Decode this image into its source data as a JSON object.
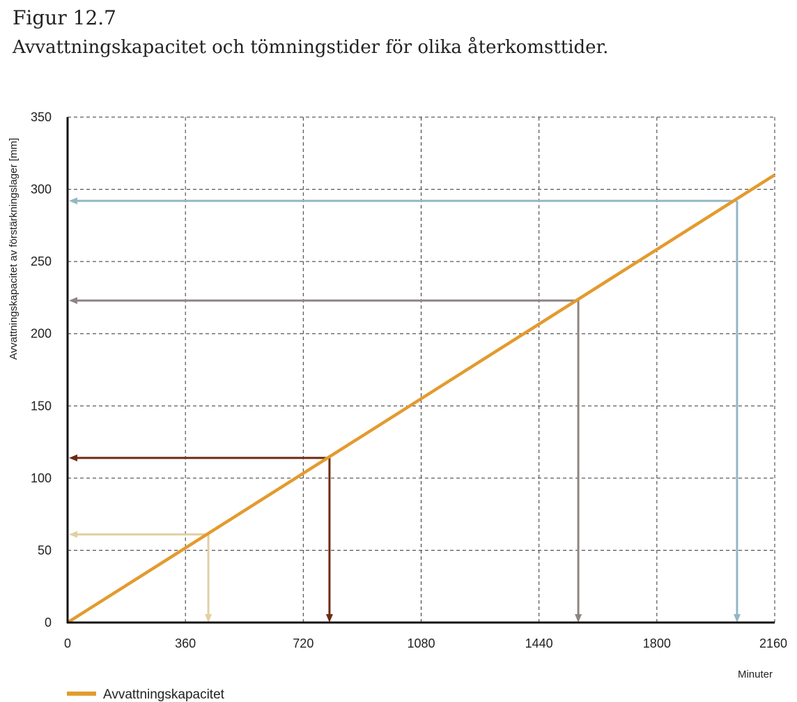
{
  "figure": {
    "number": "Figur 12.7",
    "title": "Avvattningskapacitet och tömningstider för olika återkomsttider."
  },
  "chart_data": {
    "type": "line",
    "title": "Avvattningskapacitet och tömningstider för olika återkomsttider.",
    "xlabel": "Minuter",
    "ylabel": "Avvattningskapacitet av förstärkningslager [mm]",
    "xlim": [
      0,
      2160
    ],
    "ylim": [
      0,
      350
    ],
    "xticks": [
      0,
      360,
      720,
      1080,
      1440,
      1800,
      2160
    ],
    "yticks": [
      0,
      50,
      100,
      150,
      200,
      250,
      300,
      350
    ],
    "grid": true,
    "legend_position": "bottom-left",
    "series": [
      {
        "name": "Avvattningskapacitet",
        "color": "#E39B2E",
        "x": [
          0,
          2160
        ],
        "y": [
          0,
          310
        ]
      }
    ],
    "guides": [
      {
        "x": 430,
        "y": 61,
        "color": "#E3CFA3"
      },
      {
        "x": 800,
        "y": 114,
        "color": "#6E2A10"
      },
      {
        "x": 1560,
        "y": 223,
        "color": "#8D8583"
      },
      {
        "x": 2045,
        "y": 292,
        "color": "#93B7C3"
      }
    ]
  }
}
